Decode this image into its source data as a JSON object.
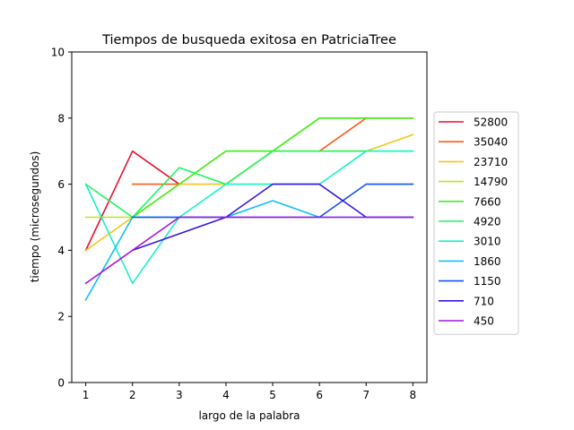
{
  "chart_data": {
    "type": "line",
    "title": "Tiempos de busqueda exitosa en PatriciaTree",
    "xlabel": "largo de la palabra",
    "ylabel": "tiempo (microsegundos)",
    "x": [
      1,
      2,
      3,
      4,
      5,
      6,
      7,
      8
    ],
    "xlim": [
      0.7,
      8.3
    ],
    "ylim": [
      0,
      10
    ],
    "xticks": [
      "1",
      "2",
      "3",
      "4",
      "5",
      "6",
      "7",
      "8"
    ],
    "yticks": [
      "0",
      "2",
      "4",
      "6",
      "8",
      "10"
    ],
    "grid": false,
    "legend_position": "center-right outside",
    "series": [
      {
        "name": "52800",
        "color": "#e8112d",
        "values": [
          4,
          7,
          6,
          null,
          null,
          null,
          null,
          null
        ]
      },
      {
        "name": "35040",
        "color": "#fe5a1d",
        "values": [
          null,
          6,
          6,
          null,
          null,
          7,
          8,
          8
        ]
      },
      {
        "name": "23710",
        "color": "#f5c518",
        "values": [
          4,
          5,
          6,
          6,
          7,
          7,
          7,
          7.5
        ]
      },
      {
        "name": "14790",
        "color": "#b7e924",
        "values": [
          5,
          5,
          6,
          7,
          7,
          8,
          8,
          8
        ]
      },
      {
        "name": "7660",
        "color": "#40f01c",
        "values": [
          null,
          5,
          6,
          7,
          7,
          8,
          8,
          8
        ]
      },
      {
        "name": "4920",
        "color": "#1ef560",
        "values": [
          6,
          5,
          6.5,
          6,
          7,
          7,
          7,
          7
        ]
      },
      {
        "name": "3010",
        "color": "#14f3c7",
        "values": [
          6,
          3,
          5,
          6,
          6,
          6,
          7,
          7
        ]
      },
      {
        "name": "1860",
        "color": "#10c0f5",
        "values": [
          2.5,
          5,
          5,
          5,
          5.5,
          5,
          5,
          5
        ]
      },
      {
        "name": "1150",
        "color": "#1450f0",
        "values": [
          null,
          5,
          5,
          5,
          5,
          5,
          6,
          6
        ]
      },
      {
        "name": "710",
        "color": "#3a14e0",
        "values": [
          null,
          4,
          4.5,
          5,
          6,
          6,
          5,
          5
        ]
      },
      {
        "name": "450",
        "color": "#a814d8",
        "values": [
          3,
          4,
          5,
          5,
          5,
          5,
          5,
          5
        ]
      }
    ]
  }
}
